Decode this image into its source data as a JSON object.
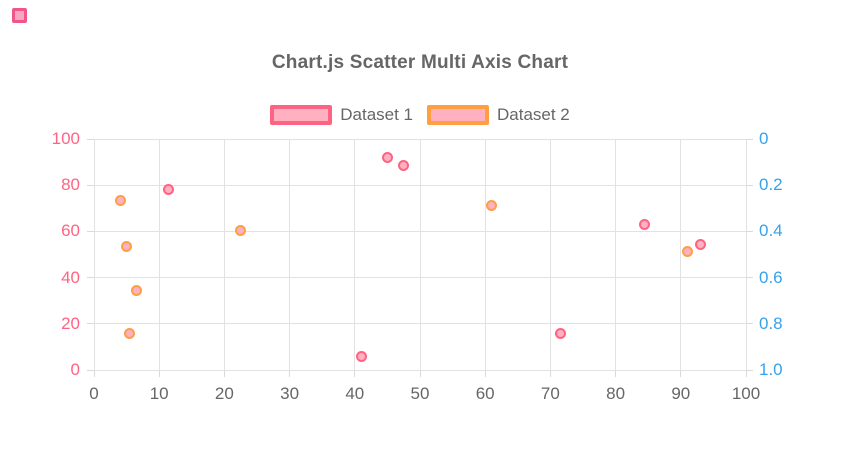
{
  "corner_swatch": {
    "fill": "#f9a6c0",
    "border": "#f0558c"
  },
  "chart_data": {
    "type": "scatter",
    "title": "Chart.js Scatter Multi Axis Chart",
    "legend_position": "top",
    "grid": true,
    "x_axis": {
      "min": 0,
      "max": 100,
      "tick_step": 10,
      "ticks": [
        "0",
        "10",
        "20",
        "30",
        "40",
        "50",
        "60",
        "70",
        "80",
        "90",
        "100"
      ],
      "tick_color": "#666666"
    },
    "y_axis_left": {
      "min": 0,
      "max": 100,
      "tick_step": 20,
      "ticks": [
        "100",
        "80",
        "60",
        "40",
        "20",
        "0"
      ],
      "tick_color": "#ff6384"
    },
    "y_axis_right": {
      "min": 0,
      "max": 1,
      "tick_step": 0.2,
      "reversed": true,
      "ticks": [
        "0",
        "0.2",
        "0.4",
        "0.6",
        "0.8",
        "1.0"
      ],
      "tick_color": "#36a2eb"
    },
    "series": [
      {
        "name": "Dataset 1",
        "axis": "left",
        "border_color": "#ff6384",
        "fill_color": "#ffb1c1",
        "points": [
          {
            "x": 11.5,
            "y": 78
          },
          {
            "x": 41,
            "y": 6
          },
          {
            "x": 45,
            "y": 92
          },
          {
            "x": 47.5,
            "y": 88.5
          },
          {
            "x": 71.5,
            "y": 16
          },
          {
            "x": 84.5,
            "y": 63
          },
          {
            "x": 93,
            "y": 54.5
          }
        ]
      },
      {
        "name": "Dataset 2",
        "axis": "right",
        "border_color": "#ff9f40",
        "fill_color": "#ffb1c1",
        "points": [
          {
            "x": 4,
            "y": 0.265
          },
          {
            "x": 5,
            "y": 0.465
          },
          {
            "x": 5.5,
            "y": 0.84
          },
          {
            "x": 6.5,
            "y": 0.655
          },
          {
            "x": 22.5,
            "y": 0.395
          },
          {
            "x": 61,
            "y": 0.29
          },
          {
            "x": 91,
            "y": 0.485
          }
        ]
      }
    ]
  }
}
